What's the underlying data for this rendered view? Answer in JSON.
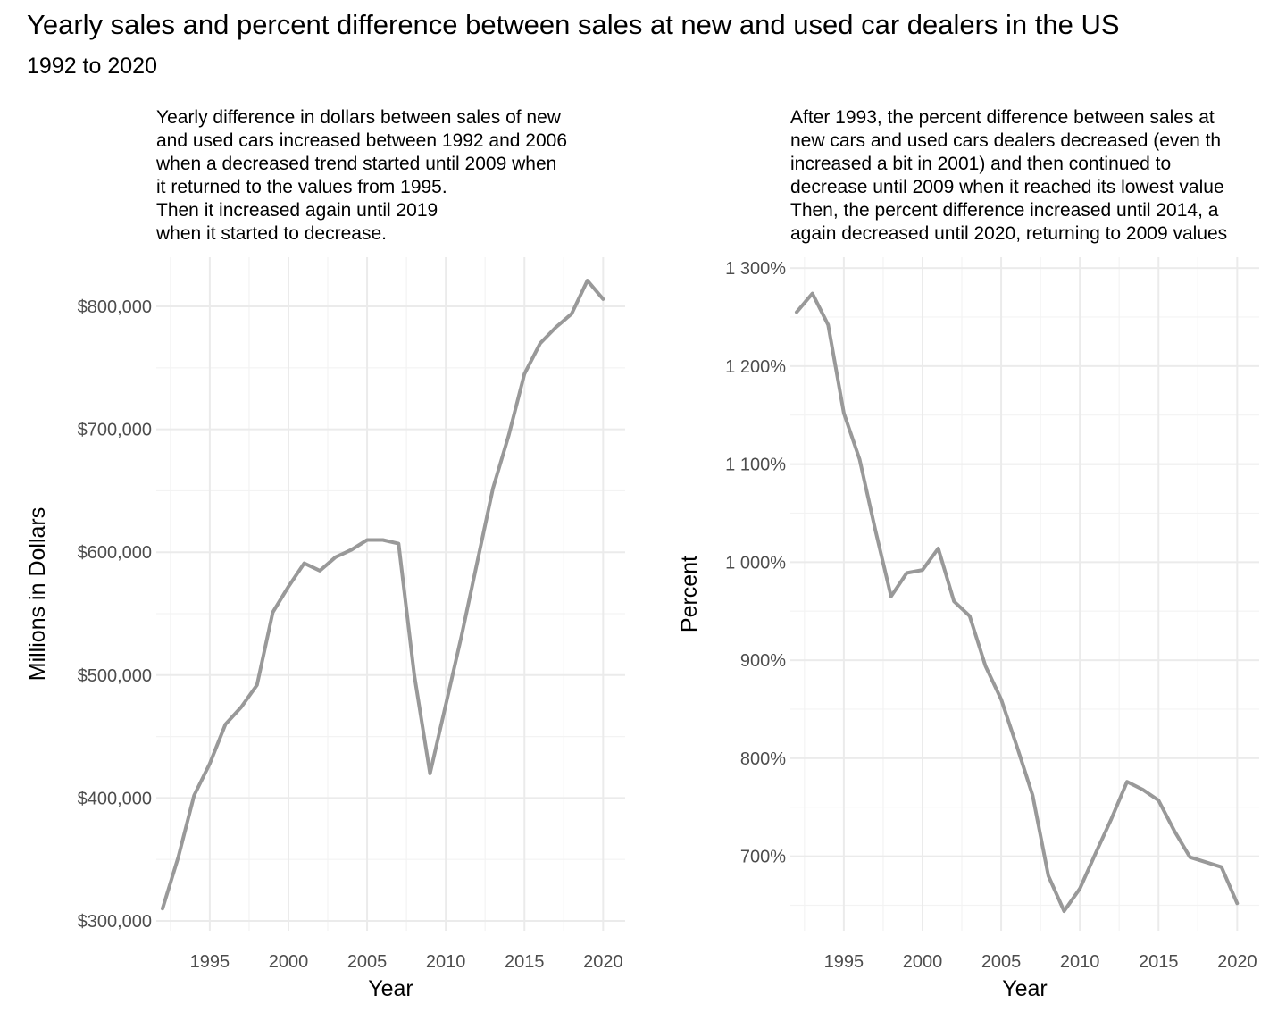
{
  "title": "Yearly sales and percent difference between sales at new and used car dealers in the US",
  "subtitle": "1992 to 2020",
  "line_color": "#999999",
  "chart_data": [
    {
      "type": "line",
      "caption": [
        "Yearly difference in dollars between sales of new",
        "and used cars increased between 1992 and 2006",
        "when a decreased trend started until 2009 when",
        "it returned to the values from 1995.",
        "Then it increased again until 2019",
        "when it started to decrease."
      ],
      "xlabel": "Year",
      "ylabel": "Millions in Dollars",
      "xlim": [
        1991.6,
        2021.4
      ],
      "ylim": [
        292000,
        840000
      ],
      "xticks": [
        1995,
        2000,
        2005,
        2010,
        2015,
        2020
      ],
      "xtick_labels": [
        "1995",
        "2000",
        "2005",
        "2010",
        "2015",
        "2020"
      ],
      "yticks": [
        300000,
        400000,
        500000,
        600000,
        700000,
        800000
      ],
      "ytick_labels": [
        "$300,000",
        "$400,000",
        "$500,000",
        "$600,000",
        "$700,000",
        "$800,000"
      ],
      "grid": true,
      "series": [
        {
          "x": [
            1992,
            1993,
            1994,
            1995,
            1996,
            1997,
            1998,
            1999,
            2000,
            2001,
            2002,
            2003,
            2004,
            2005,
            2006,
            2007,
            2008,
            2009,
            2010,
            2011,
            2012,
            2013,
            2014,
            2015,
            2016,
            2017,
            2018,
            2019,
            2020
          ],
          "values": [
            310000,
            352000,
            402000,
            428000,
            460000,
            474000,
            492000,
            551000,
            572000,
            591000,
            585000,
            596000,
            602000,
            610000,
            610000,
            607000,
            500000,
            420000,
            476000,
            532000,
            592000,
            652000,
            695000,
            745000,
            770000,
            783000,
            794000,
            821000,
            806000
          ]
        }
      ]
    },
    {
      "type": "line",
      "caption": [
        "After 1993, the percent difference between sales at",
        "new cars and used cars dealers decreased (even th",
        "increased a bit in 2001) and then continued to",
        "decrease until 2009 when it reached its lowest value",
        "Then, the percent difference increased until 2014, a",
        "again decreased until 2020, returning to 2009 values"
      ],
      "xlabel": "Year",
      "ylabel": "Percent",
      "xlim": [
        1991.6,
        2021.4
      ],
      "ylim": [
        624,
        1311
      ],
      "xticks": [
        1995,
        2000,
        2005,
        2010,
        2015,
        2020
      ],
      "xtick_labels": [
        "1995",
        "2000",
        "2005",
        "2010",
        "2015",
        "2020"
      ],
      "yticks": [
        700,
        800,
        900,
        1000,
        1100,
        1200,
        1300
      ],
      "ytick_labels": [
        "700%",
        "800%",
        "900%",
        "1 000%",
        "1 100%",
        "1 200%",
        "1 300%"
      ],
      "grid": true,
      "series": [
        {
          "x": [
            1992,
            1993,
            1994,
            1995,
            1996,
            1997,
            1998,
            1999,
            2000,
            2001,
            2002,
            2003,
            2004,
            2005,
            2006,
            2007,
            2008,
            2009,
            2010,
            2011,
            2012,
            2013,
            2014,
            2015,
            2016,
            2017,
            2018,
            2019,
            2020
          ],
          "values": [
            1255,
            1274,
            1242,
            1152,
            1105,
            1033,
            965,
            989,
            992,
            1014,
            960,
            945,
            894,
            860,
            812,
            762,
            680,
            644,
            667,
            703,
            738,
            776,
            768,
            757,
            726,
            699,
            694,
            689,
            652
          ]
        }
      ]
    }
  ]
}
